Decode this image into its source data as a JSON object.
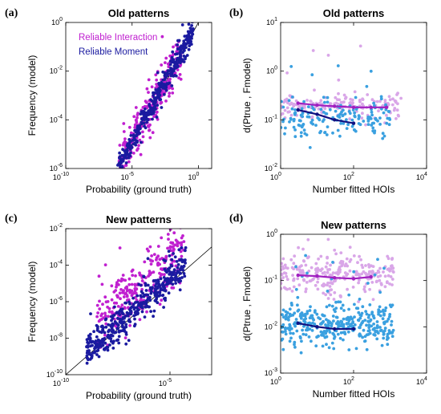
{
  "panels": [
    {
      "label": "(a)",
      "title": "Old patterns",
      "xlabel": "Probability (ground truth)",
      "ylabel": "Frequency (model)",
      "xticks": [
        "10-10",
        "10-5",
        "100"
      ],
      "yticks": [
        "10-6",
        "10-4",
        "10-2",
        "100"
      ]
    },
    {
      "label": "(b)",
      "title": "Old patterns",
      "xlabel": "Number fitted HOIs",
      "ylabel": "d(Ptrue , Fmodel)",
      "xticks": [
        "100",
        "102",
        "104"
      ],
      "yticks": [
        "10-2",
        "10-1",
        "100",
        "101"
      ]
    },
    {
      "label": "(c)",
      "title": "New patterns",
      "xlabel": "Probability (ground truth)",
      "ylabel": "Frequency (model)",
      "xticks": [
        "10-10",
        "10-5"
      ],
      "yticks": [
        "10-10",
        "10-8",
        "10-6",
        "10-4",
        "10-2"
      ]
    },
    {
      "label": "(d)",
      "title": "New patterns",
      "xlabel": "Number fitted HOIs",
      "ylabel": "d(Ptrue , Fmodel)",
      "xticks": [
        "100",
        "102",
        "104"
      ],
      "yticks": [
        "10-3",
        "10-2",
        "10-1",
        "100"
      ]
    }
  ],
  "legend": [
    {
      "label": "Reliable Interaction",
      "color": "#c020d0"
    },
    {
      "label": "Reliable Moment",
      "color": "#1a1aa0"
    }
  ],
  "colors": {
    "interaction": "#c020d0",
    "moment": "#1a1aa0",
    "interaction_light": "#d9a6e8",
    "moment_light": "#3aa0e0",
    "interaction_line": "#a020c0",
    "moment_line": "#101080",
    "diagonal": "#000000"
  },
  "chart_data": [
    {
      "type": "scatter",
      "id": "a",
      "title": "Old patterns",
      "xlabel": "Probability (ground truth)",
      "ylabel": "Frequency (model)",
      "xscale": "log",
      "yscale": "log",
      "xlim": [
        1e-10,
        10
      ],
      "ylim": [
        1e-06,
        1
      ],
      "diagonal": true,
      "series": [
        {
          "name": "Reliable Interaction",
          "cloud": {
            "x_log_range": [
              -6.0,
              -1.2
            ],
            "y_spread_log": 0.45,
            "n": 260
          }
        },
        {
          "name": "Reliable Moment",
          "cloud": {
            "x_log_range": [
              -6.2,
              -0.4
            ],
            "y_spread_log": 0.25,
            "n": 340
          }
        }
      ]
    },
    {
      "type": "scatter",
      "id": "b",
      "title": "Old patterns",
      "xlabel": "Number fitted HOIs",
      "ylabel": "d(Ptrue , Fmodel)",
      "xscale": "log",
      "yscale": "log",
      "xlim": [
        1,
        10000
      ],
      "ylim": [
        0.01,
        10
      ],
      "series": [
        {
          "name": "Reliable Interaction",
          "style": "light",
          "cloud": {
            "x_log_range": [
              0,
              3.3
            ],
            "y_center_log": -0.72,
            "y_spread_log": 0.15,
            "n": 170
          }
        },
        {
          "name": "Reliable Moment",
          "style": "light",
          "cloud": {
            "x_log_range": [
              0,
              3.0
            ],
            "y_center_log": -0.95,
            "y_spread_log": 0.2,
            "n": 170
          }
        },
        {
          "name": "Reliable Interaction (mean)",
          "style": "line",
          "x": [
            3,
            10,
            30,
            100,
            300,
            800
          ],
          "y": [
            0.22,
            0.2,
            0.19,
            0.18,
            0.18,
            0.18
          ]
        },
        {
          "name": "Reliable Moment (mean)",
          "style": "line",
          "x": [
            3,
            10,
            30,
            100
          ],
          "y": [
            0.16,
            0.13,
            0.1,
            0.085
          ]
        }
      ]
    },
    {
      "type": "scatter",
      "id": "c",
      "title": "New patterns",
      "xlabel": "Probability (ground truth)",
      "ylabel": "Frequency (model)",
      "xscale": "log",
      "yscale": "log",
      "xlim": [
        1e-10,
        0.001
      ],
      "ylim": [
        1e-10,
        0.01
      ],
      "diagonal": true,
      "series": [
        {
          "name": "Reliable Interaction",
          "cloud": {
            "x_log_range": [
              -8.5,
              -4.3
            ],
            "y_center_offset": 1.2,
            "y_spread_log": 0.8,
            "n": 260
          }
        },
        {
          "name": "Reliable Moment",
          "cloud": {
            "x_log_range": [
              -9.0,
              -4.2
            ],
            "y_center_offset": 0.2,
            "y_spread_log": 0.45,
            "n": 420
          }
        }
      ]
    },
    {
      "type": "scatter",
      "id": "d",
      "title": "New patterns",
      "xlabel": "Number fitted HOIs",
      "ylabel": "d(Ptrue , Fmodel)",
      "xscale": "log",
      "yscale": "log",
      "xlim": [
        1,
        10000
      ],
      "ylim": [
        0.001,
        1
      ],
      "series": [
        {
          "name": "Reliable Interaction",
          "style": "light",
          "cloud": {
            "x_log_range": [
              0,
              3.1
            ],
            "y_center_log": -0.85,
            "y_spread_log": 0.25,
            "n": 260
          }
        },
        {
          "name": "Reliable Moment",
          "style": "light",
          "cloud": {
            "x_log_range": [
              0,
              3.1
            ],
            "y_center_log": -1.95,
            "y_spread_log": 0.25,
            "n": 360
          }
        },
        {
          "name": "Reliable Interaction (mean)",
          "style": "line",
          "x": [
            3,
            10,
            30,
            100,
            300
          ],
          "y": [
            0.13,
            0.125,
            0.115,
            0.11,
            0.12
          ]
        },
        {
          "name": "Reliable Moment (mean)",
          "style": "line",
          "x": [
            3,
            10,
            30,
            100
          ],
          "y": [
            0.012,
            0.01,
            0.009,
            0.009
          ]
        }
      ]
    }
  ]
}
